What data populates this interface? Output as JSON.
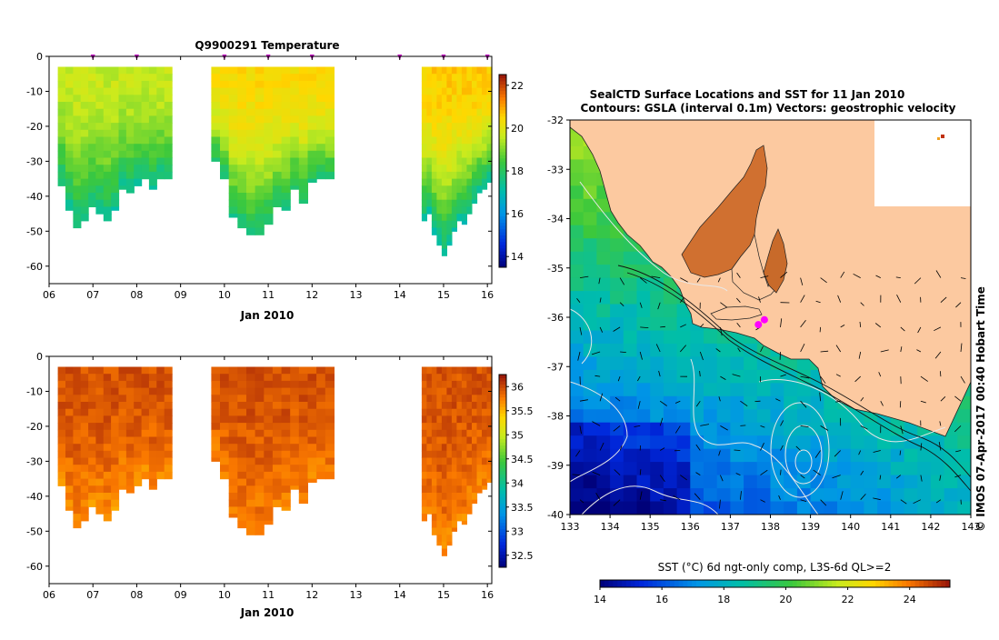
{
  "chart_data": [
    {
      "type": "heatmap",
      "title": "Q9900291  Temperature",
      "xlabel": "Jan 2010",
      "xticks": [
        "06",
        "07",
        "08",
        "09",
        "10",
        "11",
        "12",
        "13",
        "14",
        "15",
        "16"
      ],
      "xlim": [
        6,
        16.1
      ],
      "ylim": [
        -65,
        0
      ],
      "yticks": [
        "0",
        "-10",
        "-20",
        "-30",
        "-40",
        "-50",
        "-60"
      ],
      "colorbar": {
        "min": 13.5,
        "max": 22.5,
        "ticks": [
          "14",
          "16",
          "18",
          "20",
          "22"
        ]
      },
      "profile_markers": [
        7,
        8,
        10,
        11,
        12,
        14,
        15,
        16
      ],
      "segments": [
        {
          "start": 6.2,
          "end": 8.8,
          "surface": 19.6,
          "deep": 17.2,
          "top_depth": -3,
          "bottom_depths": [
            -37,
            -44,
            -49,
            -47,
            -43,
            -45,
            -47,
            -44,
            -38,
            -39,
            -37,
            -35,
            -38,
            -35,
            -35
          ]
        },
        {
          "start": 9.7,
          "end": 12.5,
          "surface": 20.4,
          "deep": 17.4,
          "top_depth": -3,
          "bottom_depths": [
            -30,
            -35,
            -46,
            -49,
            -51,
            -51,
            -48,
            -43,
            -44,
            -38,
            -42,
            -36,
            -35,
            -35
          ]
        },
        {
          "start": 14.5,
          "end": 16.1,
          "surface": 20.6,
          "deep": 17.0,
          "top_depth": -3,
          "bottom_depths": [
            -47,
            -45,
            -51,
            -54,
            -57,
            -54,
            -50,
            -47,
            -48,
            -45,
            -42,
            -39,
            -38,
            -36
          ]
        }
      ]
    },
    {
      "type": "heatmap",
      "title": "",
      "xlabel": "Jan 2010",
      "xticks": [
        "06",
        "07",
        "08",
        "09",
        "10",
        "11",
        "12",
        "13",
        "14",
        "15",
        "16"
      ],
      "xlim": [
        6,
        16.1
      ],
      "ylim": [
        -65,
        0
      ],
      "yticks": [
        "0",
        "-10",
        "-20",
        "-30",
        "-40",
        "-50",
        "-60"
      ],
      "colorbar": {
        "min": 32.25,
        "max": 36.25,
        "ticks": [
          "32.5",
          "33",
          "33.5",
          "34",
          "34.5",
          "35",
          "35.5",
          "36"
        ]
      },
      "segments": [
        {
          "start": 6.2,
          "end": 8.8,
          "surface": 35.95,
          "deep": 35.65,
          "top_depth": -3,
          "bottom_depths": [
            -37,
            -44,
            -49,
            -47,
            -43,
            -45,
            -47,
            -44,
            -38,
            -39,
            -37,
            -35,
            -38,
            -35,
            -35
          ]
        },
        {
          "start": 9.7,
          "end": 12.5,
          "surface": 35.95,
          "deep": 35.7,
          "top_depth": -3,
          "bottom_depths": [
            -30,
            -35,
            -46,
            -49,
            -51,
            -51,
            -48,
            -43,
            -44,
            -38,
            -42,
            -36,
            -35,
            -35
          ]
        },
        {
          "start": 14.5,
          "end": 16.1,
          "surface": 35.95,
          "deep": 35.7,
          "top_depth": -3,
          "bottom_depths": [
            -47,
            -45,
            -51,
            -54,
            -57,
            -54,
            -50,
            -47,
            -48,
            -45,
            -42,
            -39,
            -38,
            -36
          ]
        }
      ]
    },
    {
      "type": "heatmap",
      "title_line1": "SealCTD Surface Locations and SST for 11 Jan 2010",
      "title_line2": "Contours: GSLA (interval 0.1m) Vectors: geostrophic velocity",
      "xlim": [
        133,
        143
      ],
      "ylim": [
        -40,
        -32
      ],
      "xticks": [
        "133",
        "134",
        "135",
        "136",
        "137",
        "138",
        "139",
        "140",
        "141",
        "142",
        "143"
      ],
      "yticks": [
        "-32",
        "-33",
        "-34",
        "-35",
        "-36",
        "-37",
        "-38",
        "-39",
        "-40"
      ],
      "colorbar": {
        "min": 14,
        "max": 25.3,
        "label": "SST (°C) 6d ngt-only comp, L3S-6d QL>=2",
        "ticks": [
          "14",
          "16",
          "18",
          "20",
          "22",
          "24"
        ]
      },
      "seal_locations": [
        {
          "lon": 137.85,
          "lat": -36.05
        },
        {
          "lon": 137.7,
          "lat": -36.15
        }
      ],
      "eddy_center": {
        "lon": 138.8,
        "lat": -39.0
      }
    }
  ],
  "sidebar_credit": "© IMOS 07-Apr-2017 00:40 Hobart Time"
}
